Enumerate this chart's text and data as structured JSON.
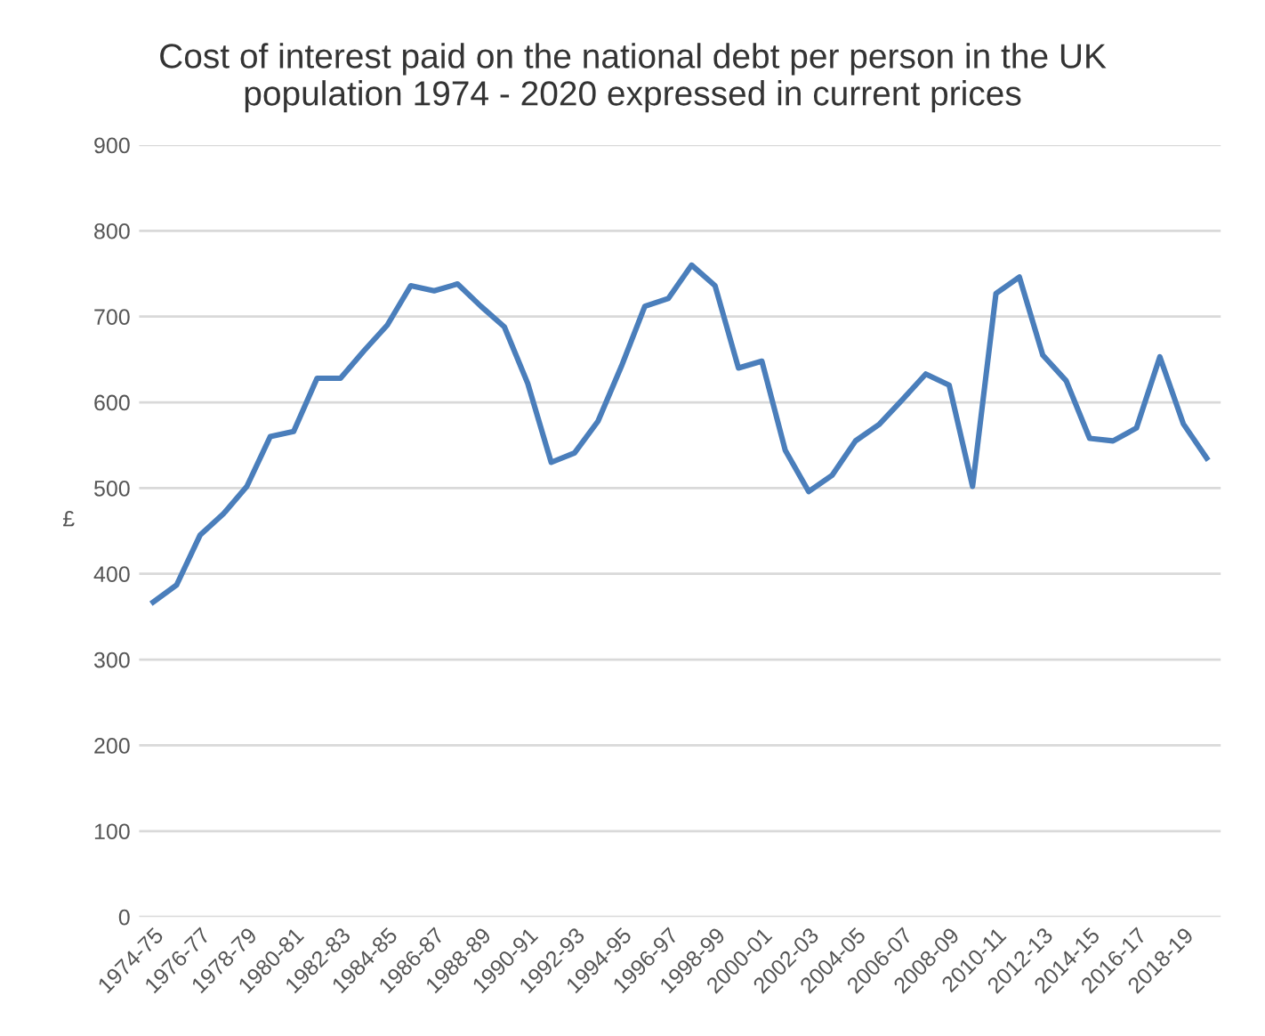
{
  "chart_data": {
    "type": "line",
    "title": "Cost of interest paid on the national debt per person in the UK\npopulation 1974 - 2020 expressed in current prices",
    "ylabel": "£",
    "categories": [
      "1974-75",
      null,
      "1976-77",
      null,
      "1978-79",
      null,
      "1980-81",
      null,
      "1982-83",
      null,
      "1984-85",
      null,
      "1986-87",
      null,
      "1988-89",
      null,
      "1990-91",
      null,
      "1992-93",
      null,
      "1994-95",
      null,
      "1996-97",
      null,
      "1998-99",
      null,
      "2000-01",
      null,
      "2002-03",
      null,
      "2004-05",
      null,
      "2006-07",
      null,
      "2008-09",
      null,
      "2010-11",
      null,
      "2012-13",
      null,
      "2014-15",
      null,
      "2016-17",
      null,
      "2018-19",
      null
    ],
    "series": [
      {
        "color": "#4a7ebb",
        "values": [
          367,
          387,
          445,
          470,
          502,
          560,
          566,
          628,
          628,
          660,
          690,
          736,
          730,
          738,
          712,
          688,
          622,
          530,
          541,
          578,
          642,
          712,
          721,
          760,
          736,
          640,
          648,
          544,
          496,
          515,
          555,
          574,
          603,
          633,
          620,
          502,
          727,
          746,
          655,
          625,
          558,
          555,
          570,
          653,
          575,
          535
        ]
      }
    ],
    "ylim": [
      0,
      900
    ],
    "yticks": [
      0,
      100,
      200,
      300,
      400,
      500,
      600,
      700,
      800,
      900
    ],
    "grid": "y",
    "legend": false,
    "marker": "none",
    "line_style": "solid"
  }
}
